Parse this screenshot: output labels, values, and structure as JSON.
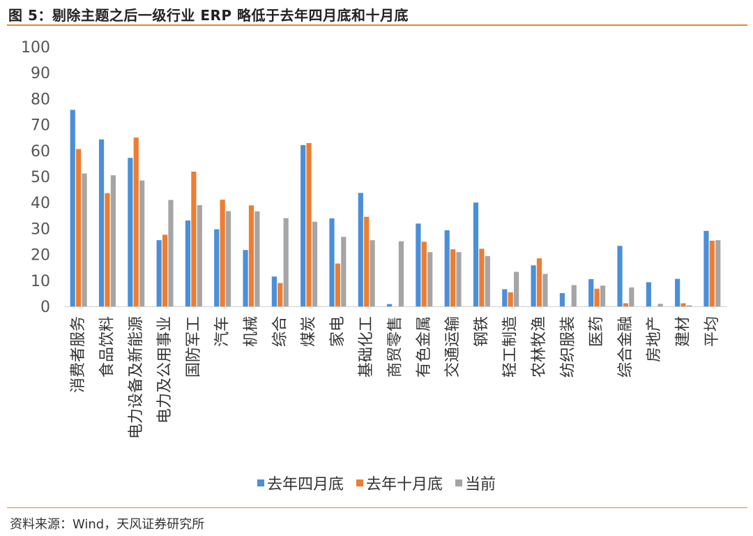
{
  "figure": {
    "title": "图 5：剔除主题之后一级行业 ERP 略低于去年四月底和十月底",
    "source": "资料来源：Wind，天风证券研究所"
  },
  "chart_data": {
    "type": "bar",
    "title": "",
    "xlabel": "",
    "ylabel": "",
    "ylim": [
      0,
      100
    ],
    "yticks": [
      0,
      10,
      20,
      30,
      40,
      50,
      60,
      70,
      80,
      90,
      100
    ],
    "grid": false,
    "legend_position": "bottom",
    "categories": [
      "消费者服务",
      "食品饮料",
      "电力设备及新能源",
      "电力及公用事业",
      "国防军工",
      "汽车",
      "机械",
      "综合",
      "煤炭",
      "家电",
      "基础化工",
      "商贸零售",
      "有色金属",
      "交通运输",
      "钢铁",
      "轻工制造",
      "农林牧渔",
      "纺织服装",
      "医药",
      "综合金融",
      "房地产",
      "建材",
      "平均"
    ],
    "series": [
      {
        "name": "去年四月底",
        "color": "#4a8fd8",
        "values": [
          75.7,
          64.3,
          57.2,
          25.5,
          33.1,
          29.7,
          21.7,
          11.5,
          62.1,
          33.9,
          43.7,
          0.9,
          31.9,
          29.3,
          40.0,
          6.6,
          15.8,
          5.1,
          10.5,
          23.3,
          9.3,
          10.6,
          29.1
        ]
      },
      {
        "name": "去年十月底",
        "color": "#ed7d31",
        "values": [
          60.6,
          43.6,
          65.0,
          27.6,
          51.9,
          41.1,
          38.9,
          9.0,
          62.9,
          16.5,
          34.5,
          0,
          24.9,
          22.0,
          22.2,
          5.4,
          18.5,
          0,
          6.8,
          1.2,
          0,
          1.2,
          25.3
        ]
      },
      {
        "name": "当前",
        "color": "#a5a5a5",
        "values": [
          51.2,
          50.5,
          48.5,
          41.0,
          39.0,
          36.7,
          36.6,
          34.0,
          32.6,
          26.8,
          25.5,
          25.1,
          20.9,
          20.9,
          19.4,
          13.3,
          12.5,
          8.2,
          8.0,
          7.3,
          1.0,
          0.4,
          25.5
        ]
      }
    ]
  }
}
